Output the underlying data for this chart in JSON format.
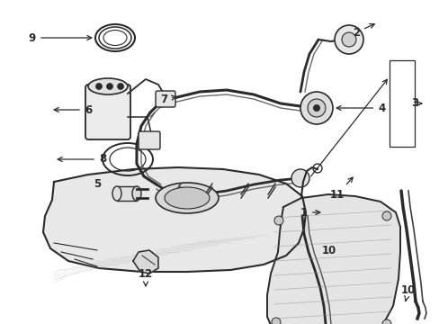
{
  "bg_color": "#ffffff",
  "lc": "#2a2a2a",
  "figsize": [
    4.89,
    3.6
  ],
  "dpi": 100,
  "xlim": [
    0,
    489
  ],
  "ylim": [
    0,
    360
  ]
}
